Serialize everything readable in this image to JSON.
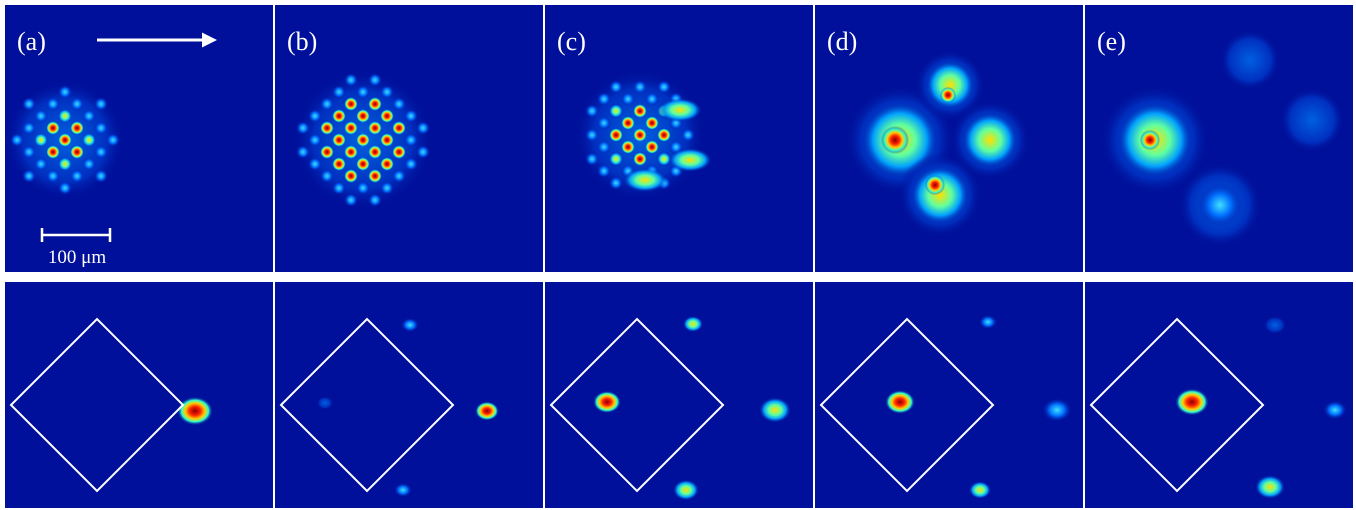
{
  "panels": [
    {
      "label": "(a)"
    },
    {
      "label": "(b)"
    },
    {
      "label": "(c)"
    },
    {
      "label": "(d)"
    },
    {
      "label": "(e)"
    }
  ],
  "scale_bar": {
    "label": "100 μm"
  }
}
